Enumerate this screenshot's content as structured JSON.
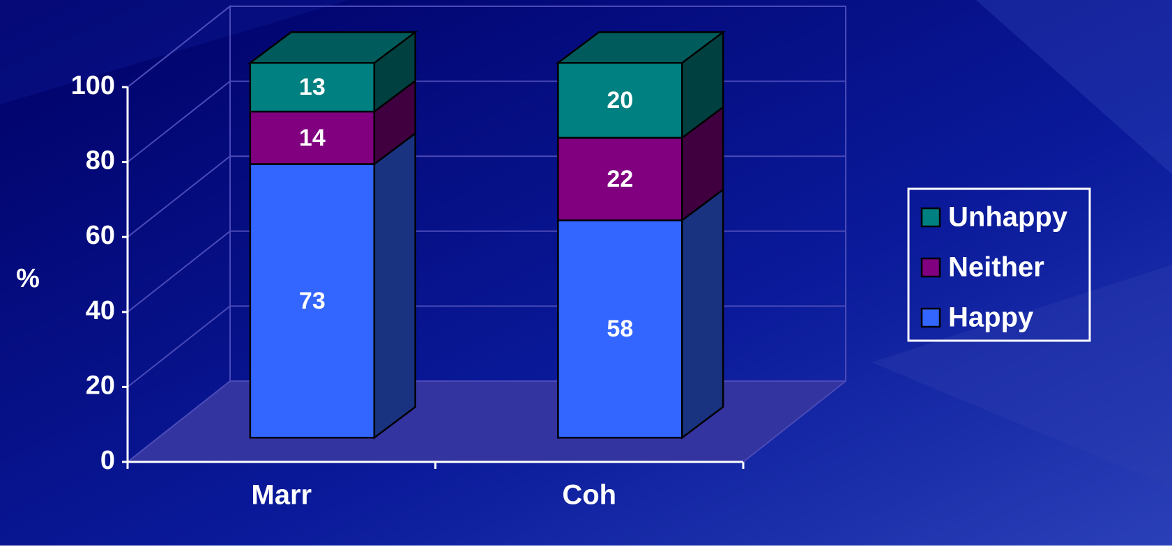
{
  "chart_data": {
    "type": "bar3d_stacked",
    "y_label": "%",
    "categories": [
      "Marr",
      "Coh"
    ],
    "series": [
      {
        "name": "Happy",
        "color": "#3366ff",
        "values": [
          73,
          58
        ]
      },
      {
        "name": "Neither",
        "color": "#800080",
        "values": [
          14,
          22
        ]
      },
      {
        "name": "Unhappy",
        "color": "#008080",
        "values": [
          13,
          20
        ]
      }
    ],
    "ylim": [
      0,
      100
    ],
    "yticks": [
      0,
      20,
      40,
      60,
      80,
      100
    ],
    "grid": true,
    "legend": "right"
  }
}
